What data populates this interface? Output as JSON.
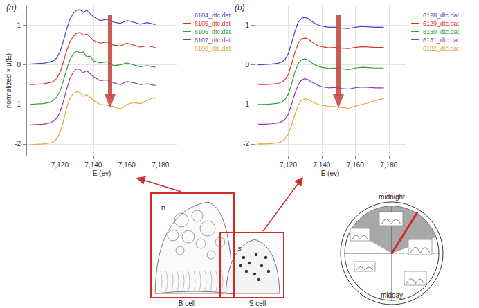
{
  "chart_data": [
    {
      "type": "line",
      "title": "(a)",
      "xlabel": "E (ev)",
      "ylabel": "normalized × μ(E)",
      "x": [
        7102,
        7106,
        7110,
        7114,
        7116,
        7118,
        7120,
        7122,
        7124,
        7126,
        7128,
        7130,
        7132,
        7134,
        7136,
        7138,
        7140,
        7144,
        7148,
        7152,
        7156,
        7160,
        7164,
        7168,
        7172,
        7177
      ],
      "xlim": [
        7100,
        7190
      ],
      "xticks": [
        7120,
        7140,
        7160,
        7180
      ],
      "ylim": [
        -2.3,
        1.5
      ],
      "yticks": [
        -2,
        -1,
        0,
        1
      ],
      "grid": true,
      "legend": "upper right",
      "series": [
        {
          "name": "6104_dtc.dat",
          "color": "#3f48cc",
          "values": [
            0.02,
            0.03,
            0.04,
            0.07,
            0.1,
            0.17,
            0.32,
            0.58,
            0.9,
            1.15,
            1.3,
            1.38,
            1.4,
            1.33,
            1.38,
            1.3,
            1.22,
            1.12,
            1.15,
            1.08,
            1.05,
            1.12,
            1.08,
            1.03,
            1.07,
            1.02
          ]
        },
        {
          "name": "6105_dtc.dat",
          "color": "#d9342b",
          "values": [
            -0.5,
            -0.49,
            -0.48,
            -0.45,
            -0.42,
            -0.35,
            -0.2,
            0.05,
            0.35,
            0.58,
            0.72,
            0.8,
            0.82,
            0.75,
            0.78,
            0.7,
            0.62,
            0.55,
            0.58,
            0.5,
            0.48,
            0.55,
            0.5,
            0.45,
            0.48,
            0.44
          ]
        },
        {
          "name": "6106_dtc.dat",
          "color": "#2e9e3a",
          "values": [
            -1.0,
            -0.99,
            -0.98,
            -0.95,
            -0.9,
            -0.82,
            -0.68,
            -0.42,
            -0.12,
            0.12,
            0.28,
            0.35,
            0.3,
            0.33,
            0.2,
            0.22,
            0.1,
            0.05,
            0.08,
            -0.02,
            0.0,
            0.05,
            0.0,
            -0.05,
            -0.02,
            -0.06
          ]
        },
        {
          "name": "6107_dtc.dat",
          "color": "#8b3fa6",
          "values": [
            -1.52,
            -1.51,
            -1.5,
            -1.47,
            -1.43,
            -1.36,
            -1.2,
            -0.95,
            -0.62,
            -0.35,
            -0.18,
            -0.1,
            -0.12,
            -0.2,
            -0.15,
            -0.22,
            -0.3,
            -0.4,
            -0.38,
            -0.45,
            -0.5,
            -0.42,
            -0.45,
            -0.5,
            -0.48,
            -0.52
          ]
        },
        {
          "name": "6108_dtc.dat",
          "color": "#e9a23b",
          "values": [
            -2.02,
            -2.01,
            -2.0,
            -1.98,
            -1.95,
            -1.88,
            -1.72,
            -1.45,
            -1.1,
            -0.85,
            -0.72,
            -0.68,
            -0.7,
            -0.8,
            -0.75,
            -0.82,
            -0.9,
            -1.0,
            -1.02,
            -1.05,
            -1.12,
            -1.0,
            -0.95,
            -0.98,
            -0.9,
            -0.82
          ]
        }
      ]
    },
    {
      "type": "line",
      "title": "(b)",
      "xlabel": "E (ev)",
      "x": [
        7102,
        7106,
        7110,
        7114,
        7116,
        7118,
        7120,
        7122,
        7124,
        7126,
        7128,
        7130,
        7132,
        7134,
        7136,
        7138,
        7140,
        7144,
        7148,
        7152,
        7156,
        7160,
        7164,
        7168,
        7172,
        7177
      ],
      "xlim": [
        7100,
        7190
      ],
      "xticks": [
        7120,
        7140,
        7160,
        7180
      ],
      "ylim": [
        -2.3,
        1.5
      ],
      "yticks": [
        -2,
        -1,
        0,
        1
      ],
      "grid": true,
      "legend": "upper right",
      "series": [
        {
          "name": "6128_dtc.dat",
          "color": "#3f48cc",
          "values": [
            0.0,
            0.01,
            0.02,
            0.04,
            0.07,
            0.13,
            0.28,
            0.55,
            0.85,
            1.08,
            1.18,
            1.2,
            1.17,
            1.1,
            1.05,
            1.0,
            0.98,
            0.95,
            0.95,
            0.93,
            0.92,
            0.95,
            0.97,
            0.96,
            0.95,
            0.95
          ]
        },
        {
          "name": "6129_dtc.dat",
          "color": "#d9342b",
          "values": [
            -0.5,
            -0.5,
            -0.49,
            -0.47,
            -0.44,
            -0.38,
            -0.25,
            0.02,
            0.32,
            0.55,
            0.66,
            0.68,
            0.65,
            0.58,
            0.53,
            0.48,
            0.46,
            0.43,
            0.44,
            0.42,
            0.41,
            0.44,
            0.46,
            0.45,
            0.44,
            0.44
          ]
        },
        {
          "name": "6130_dtc.dat",
          "color": "#2e9e3a",
          "values": [
            -1.0,
            -1.0,
            -0.99,
            -0.97,
            -0.94,
            -0.88,
            -0.74,
            -0.48,
            -0.18,
            0.03,
            0.13,
            0.15,
            0.12,
            0.05,
            0.0,
            -0.04,
            -0.06,
            -0.09,
            -0.08,
            -0.1,
            -0.12,
            -0.08,
            -0.06,
            -0.07,
            -0.08,
            -0.08
          ]
        },
        {
          "name": "6131_dtc.dat",
          "color": "#8b3fa6",
          "values": [
            -1.5,
            -1.5,
            -1.49,
            -1.47,
            -1.44,
            -1.38,
            -1.25,
            -1.0,
            -0.72,
            -0.5,
            -0.38,
            -0.35,
            -0.38,
            -0.44,
            -0.48,
            -0.52,
            -0.55,
            -0.58,
            -0.57,
            -0.6,
            -0.61,
            -0.58,
            -0.56,
            -0.57,
            -0.58,
            -0.58
          ]
        },
        {
          "name": "6132_dtc.dat",
          "color": "#e9a23b",
          "values": [
            -2.0,
            -2.0,
            -1.99,
            -1.97,
            -1.94,
            -1.88,
            -1.76,
            -1.52,
            -1.25,
            -1.02,
            -0.9,
            -0.86,
            -0.88,
            -0.93,
            -0.97,
            -1.0,
            -1.02,
            -1.05,
            -1.06,
            -1.08,
            -1.1,
            -1.04,
            -1.0,
            -0.96,
            -0.9,
            -0.85
          ]
        }
      ]
    }
  ],
  "diagram": {
    "cells": [
      {
        "label": "B cell",
        "letter": "B"
      },
      {
        "label": "S cell",
        "letter": "S"
      }
    ],
    "clock": {
      "top": "midnight",
      "bottom": "midday"
    }
  }
}
